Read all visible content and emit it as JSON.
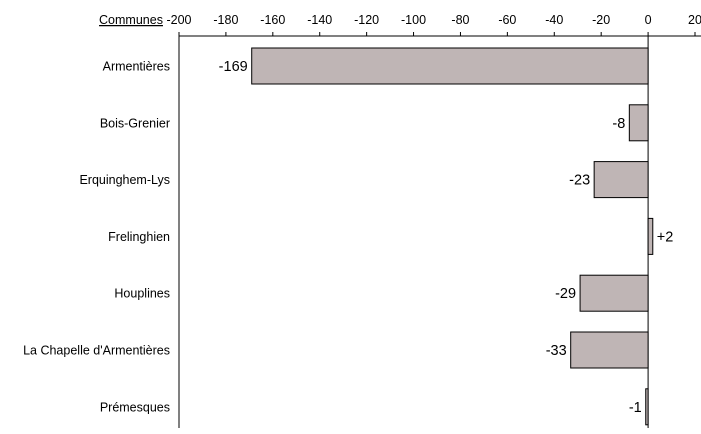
{
  "chart_data": {
    "type": "bar",
    "orientation": "horizontal",
    "category_header": "Communes",
    "categories": [
      "Armentières",
      "Bois-Grenier",
      "Erquinghem-Lys",
      "Frelinghien",
      "Houplines",
      "La Chapelle d'Armentières",
      "Prémesques"
    ],
    "series": [
      {
        "values": [
          -169,
          -8,
          -23,
          2,
          -29,
          -33,
          -1
        ]
      }
    ],
    "data_labels": [
      "-169",
      "-8",
      "-23",
      "+2",
      "-29",
      "-33",
      "-1"
    ],
    "xlim": [
      -200,
      20
    ],
    "x_ticks": [
      -200,
      -180,
      -160,
      -140,
      -120,
      -100,
      -80,
      -60,
      -40,
      -20,
      0,
      20
    ],
    "x_tick_labels": [
      "-200",
      "-180",
      "-160",
      "-140",
      "-120",
      "-100",
      "-80",
      "-60",
      "-40",
      "-20",
      "0",
      "20"
    ],
    "x_axis_position": "top",
    "grid": false,
    "legend": "none",
    "title": "",
    "xlabel": "",
    "ylabel": "",
    "bar_color": "#bfb5b5",
    "bar_edge_color": "#000000"
  }
}
